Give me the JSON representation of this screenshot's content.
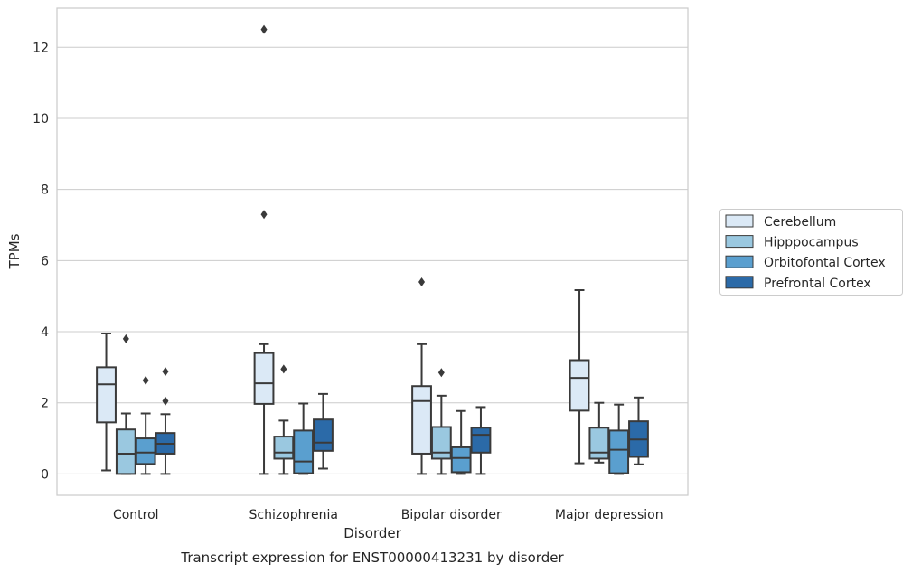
{
  "chart_data": {
    "type": "box",
    "caption": "Transcript expression for ENST00000413231 by disorder",
    "xlabel": "Disorder",
    "ylabel": "TPMs",
    "ylim": [
      -0.6,
      13.1
    ],
    "yticks": [
      0,
      2,
      4,
      6,
      8,
      10,
      12
    ],
    "grid": "horizontal",
    "legend_position": "right",
    "categories": [
      "Control",
      "Schizophrenia",
      "Bipolar disorder",
      "Major depression"
    ],
    "series": [
      {
        "name": "Cerebellum",
        "color": "#dbe9f6",
        "boxes": [
          {
            "whislo": 0.1,
            "q1": 1.45,
            "med": 2.52,
            "q3": 3.0,
            "whishi": 3.95,
            "fliers": []
          },
          {
            "whislo": 0.0,
            "q1": 1.97,
            "med": 2.55,
            "q3": 3.4,
            "whishi": 3.65,
            "fliers": [
              12.5,
              7.3
            ]
          },
          {
            "whislo": 0.0,
            "q1": 0.57,
            "med": 2.05,
            "q3": 2.47,
            "whishi": 3.65,
            "fliers": [
              5.4
            ]
          },
          {
            "whislo": 0.3,
            "q1": 1.78,
            "med": 2.7,
            "q3": 3.2,
            "whishi": 5.17,
            "fliers": []
          }
        ]
      },
      {
        "name": "Hipppocampus",
        "color": "#9ac8e0",
        "boxes": [
          {
            "whislo": 0.0,
            "q1": 0.0,
            "med": 0.57,
            "q3": 1.25,
            "whishi": 1.7,
            "fliers": [
              3.8
            ]
          },
          {
            "whislo": 0.0,
            "q1": 0.43,
            "med": 0.6,
            "q3": 1.05,
            "whishi": 1.5,
            "fliers": [
              2.95
            ]
          },
          {
            "whislo": 0.0,
            "q1": 0.43,
            "med": 0.6,
            "q3": 1.32,
            "whishi": 2.2,
            "fliers": [
              2.85
            ]
          },
          {
            "whislo": 0.32,
            "q1": 0.43,
            "med": 0.6,
            "q3": 1.3,
            "whishi": 2.0,
            "fliers": []
          }
        ]
      },
      {
        "name": "Orbitofontal Cortex",
        "color": "#5a9fcf",
        "boxes": [
          {
            "whislo": 0.0,
            "q1": 0.28,
            "med": 0.6,
            "q3": 1.0,
            "whishi": 1.7,
            "fliers": [
              2.63
            ]
          },
          {
            "whislo": 0.0,
            "q1": 0.02,
            "med": 0.35,
            "q3": 1.22,
            "whishi": 1.98,
            "fliers": []
          },
          {
            "whislo": 0.0,
            "q1": 0.05,
            "med": 0.45,
            "q3": 0.75,
            "whishi": 1.77,
            "fliers": []
          },
          {
            "whislo": 0.0,
            "q1": 0.02,
            "med": 0.68,
            "q3": 1.22,
            "whishi": 1.95,
            "fliers": []
          }
        ]
      },
      {
        "name": "Prefrontal Cortex",
        "color": "#2b6aa8",
        "boxes": [
          {
            "whislo": 0.0,
            "q1": 0.57,
            "med": 0.85,
            "q3": 1.15,
            "whishi": 1.68,
            "fliers": [
              2.88,
              2.05
            ]
          },
          {
            "whislo": 0.15,
            "q1": 0.65,
            "med": 0.88,
            "q3": 1.53,
            "whishi": 2.25,
            "fliers": []
          },
          {
            "whislo": 0.0,
            "q1": 0.6,
            "med": 1.1,
            "q3": 1.3,
            "whishi": 1.88,
            "fliers": []
          },
          {
            "whislo": 0.27,
            "q1": 0.48,
            "med": 0.97,
            "q3": 1.48,
            "whishi": 2.15,
            "fliers": []
          }
        ]
      }
    ]
  }
}
